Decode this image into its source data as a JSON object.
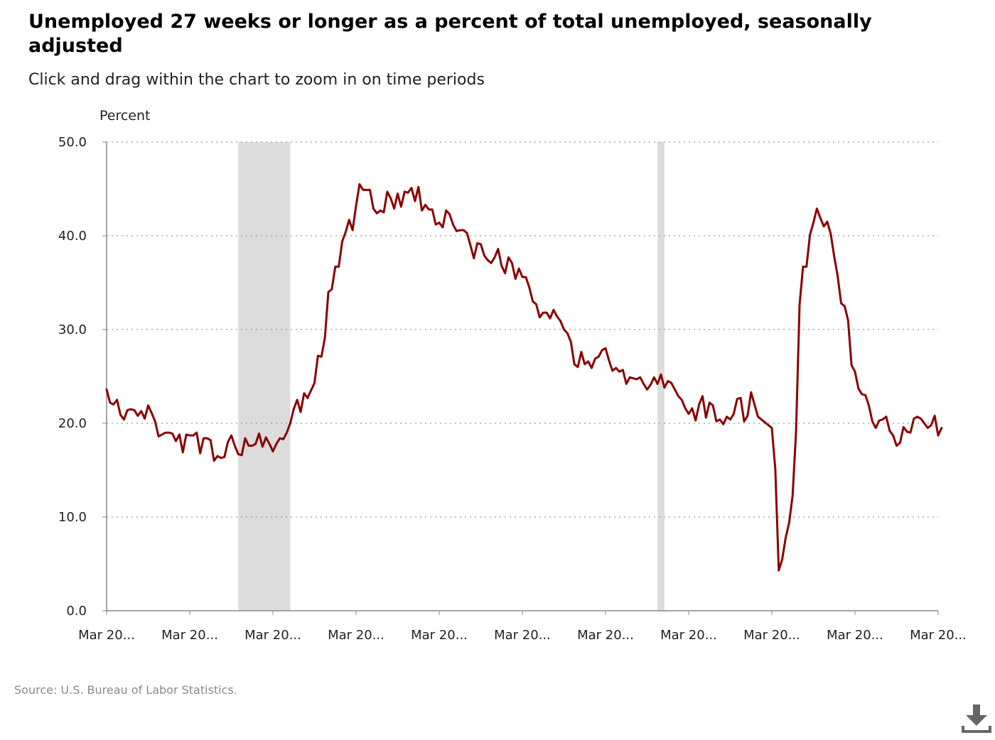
{
  "chart_data": {
    "type": "line",
    "title": "Unemployed 27 weeks or longer as a percent of total unemployed, seasonally adjusted",
    "subtitle": "Click and drag within the chart to zoom in on time periods",
    "ylabel": "Percent",
    "xlabel": "",
    "ylim": [
      0,
      50
    ],
    "y_ticks": [
      "0.0",
      "10.0",
      "20.0",
      "30.0",
      "40.0",
      "50.0"
    ],
    "x_ticks": [
      "Mar 20...",
      "Mar 20...",
      "Mar 20...",
      "Mar 20...",
      "Mar 20...",
      "Mar 20...",
      "Mar 20...",
      "Mar 20...",
      "Mar 20...",
      "Mar 20...",
      "Mar 20..."
    ],
    "grid": true,
    "x_range": [
      0,
      240
    ],
    "shaded_regions": [
      {
        "start": 38,
        "end": 53
      },
      {
        "start": 159,
        "end": 161
      }
    ],
    "series": [
      {
        "color": "#8b0000",
        "points": [
          [
            0,
            23.6
          ],
          [
            1,
            22.2
          ],
          [
            2,
            22.0
          ],
          [
            3,
            22.5
          ],
          [
            4,
            20.9
          ],
          [
            5,
            20.4
          ],
          [
            6,
            21.4
          ],
          [
            7,
            21.5
          ],
          [
            8,
            21.4
          ],
          [
            9,
            20.8
          ],
          [
            10,
            21.3
          ],
          [
            11,
            20.5
          ],
          [
            12,
            21.9
          ],
          [
            13,
            21.1
          ],
          [
            14,
            20.2
          ],
          [
            15,
            18.6
          ],
          [
            16,
            18.8
          ],
          [
            17,
            19.0
          ],
          [
            18,
            19.0
          ],
          [
            19,
            18.9
          ],
          [
            20,
            18.1
          ],
          [
            21,
            18.8
          ],
          [
            22,
            16.9
          ],
          [
            23,
            18.8
          ],
          [
            24,
            18.7
          ],
          [
            25,
            18.7
          ],
          [
            26,
            19.0
          ],
          [
            27,
            16.8
          ],
          [
            28,
            18.4
          ],
          [
            29,
            18.4
          ],
          [
            30,
            18.2
          ],
          [
            31,
            16.0
          ],
          [
            32,
            16.5
          ],
          [
            33,
            16.3
          ],
          [
            34,
            16.4
          ],
          [
            35,
            18.0
          ],
          [
            36,
            18.7
          ],
          [
            37,
            17.6
          ],
          [
            38,
            16.7
          ],
          [
            39,
            16.6
          ],
          [
            40,
            18.4
          ],
          [
            41,
            17.6
          ],
          [
            42,
            17.6
          ],
          [
            43,
            17.8
          ],
          [
            44,
            18.9
          ],
          [
            45,
            17.5
          ],
          [
            46,
            18.5
          ],
          [
            47,
            17.8
          ],
          [
            48,
            17.0
          ],
          [
            49,
            17.8
          ],
          [
            50,
            18.4
          ],
          [
            51,
            18.3
          ],
          [
            52,
            19.0
          ],
          [
            53,
            20.0
          ],
          [
            54,
            21.5
          ],
          [
            55,
            22.5
          ],
          [
            56,
            21.2
          ],
          [
            57,
            23.2
          ],
          [
            58,
            22.7
          ],
          [
            59,
            23.5
          ],
          [
            60,
            24.3
          ],
          [
            61,
            27.2
          ],
          [
            62,
            27.1
          ],
          [
            63,
            29.1
          ],
          [
            64,
            34.0
          ],
          [
            65,
            34.3
          ],
          [
            66,
            36.7
          ],
          [
            67,
            36.7
          ],
          [
            68,
            39.4
          ],
          [
            69,
            40.4
          ],
          [
            70,
            41.7
          ],
          [
            71,
            40.6
          ],
          [
            72,
            43.2
          ],
          [
            73,
            45.5
          ],
          [
            74,
            44.9
          ],
          [
            75,
            44.9
          ],
          [
            76,
            44.9
          ],
          [
            77,
            42.9
          ],
          [
            78,
            42.4
          ],
          [
            79,
            42.7
          ],
          [
            80,
            42.5
          ],
          [
            81,
            44.7
          ],
          [
            82,
            44.0
          ],
          [
            83,
            42.9
          ],
          [
            84,
            44.5
          ],
          [
            85,
            43.1
          ],
          [
            86,
            44.7
          ],
          [
            87,
            44.6
          ],
          [
            88,
            45.1
          ],
          [
            89,
            43.7
          ],
          [
            90,
            45.2
          ],
          [
            91,
            42.7
          ],
          [
            92,
            43.3
          ],
          [
            93,
            42.8
          ],
          [
            94,
            42.8
          ],
          [
            95,
            41.2
          ],
          [
            96,
            41.4
          ],
          [
            97,
            40.9
          ],
          [
            98,
            42.7
          ],
          [
            99,
            42.3
          ],
          [
            100,
            41.2
          ],
          [
            101,
            40.5
          ],
          [
            102,
            40.6
          ],
          [
            103,
            40.6
          ],
          [
            104,
            40.3
          ],
          [
            105,
            39.0
          ],
          [
            106,
            37.6
          ],
          [
            107,
            39.2
          ],
          [
            108,
            39.1
          ],
          [
            109,
            37.9
          ],
          [
            110,
            37.4
          ],
          [
            111,
            37.1
          ],
          [
            112,
            37.7
          ],
          [
            113,
            38.6
          ],
          [
            114,
            36.8
          ],
          [
            115,
            36.0
          ],
          [
            116,
            37.7
          ],
          [
            117,
            37.1
          ],
          [
            118,
            35.4
          ],
          [
            119,
            36.5
          ],
          [
            120,
            35.6
          ],
          [
            121,
            35.6
          ],
          [
            122,
            34.5
          ],
          [
            123,
            33.0
          ],
          [
            124,
            32.7
          ],
          [
            125,
            31.3
          ],
          [
            126,
            31.8
          ],
          [
            127,
            31.8
          ],
          [
            128,
            31.2
          ],
          [
            129,
            32.1
          ],
          [
            130,
            31.4
          ],
          [
            131,
            30.9
          ],
          [
            132,
            30.0
          ],
          [
            133,
            29.6
          ],
          [
            134,
            28.7
          ],
          [
            135,
            26.3
          ],
          [
            136,
            26.0
          ],
          [
            137,
            27.6
          ],
          [
            138,
            26.3
          ],
          [
            139,
            26.6
          ],
          [
            140,
            25.9
          ],
          [
            141,
            26.9
          ],
          [
            142,
            27.1
          ],
          [
            143,
            27.8
          ],
          [
            144,
            28.0
          ],
          [
            145,
            26.7
          ],
          [
            146,
            25.6
          ],
          [
            147,
            25.9
          ],
          [
            148,
            25.5
          ],
          [
            149,
            25.7
          ],
          [
            150,
            24.2
          ],
          [
            151,
            24.9
          ],
          [
            152,
            24.8
          ],
          [
            153,
            24.7
          ],
          [
            154,
            24.9
          ],
          [
            155,
            24.2
          ],
          [
            156,
            23.6
          ],
          [
            157,
            24.1
          ],
          [
            158,
            24.9
          ],
          [
            159,
            24.2
          ],
          [
            160,
            25.2
          ],
          [
            161,
            23.8
          ],
          [
            162,
            24.5
          ],
          [
            163,
            24.3
          ],
          [
            164,
            23.6
          ],
          [
            165,
            22.9
          ],
          [
            166,
            22.5
          ],
          [
            167,
            21.6
          ],
          [
            168,
            21.0
          ],
          [
            169,
            21.6
          ],
          [
            170,
            20.3
          ],
          [
            171,
            22.0
          ],
          [
            172,
            22.9
          ],
          [
            173,
            20.6
          ],
          [
            174,
            22.2
          ],
          [
            175,
            21.9
          ],
          [
            176,
            20.2
          ],
          [
            177,
            20.4
          ],
          [
            178,
            19.9
          ],
          [
            179,
            20.7
          ],
          [
            180,
            20.4
          ],
          [
            181,
            21.0
          ],
          [
            182,
            22.6
          ],
          [
            183,
            22.7
          ],
          [
            184,
            20.2
          ],
          [
            185,
            20.8
          ],
          [
            186,
            23.3
          ],
          [
            187,
            22.0
          ],
          [
            188,
            20.7
          ],
          [
            189,
            20.4
          ],
          [
            190,
            20.1
          ],
          [
            191,
            19.8
          ],
          [
            192,
            19.5
          ],
          [
            193,
            15.1
          ],
          [
            194,
            4.3
          ],
          [
            195,
            5.5
          ],
          [
            196,
            7.8
          ],
          [
            197,
            9.4
          ],
          [
            198,
            12.3
          ],
          [
            199,
            19.2
          ],
          [
            200,
            32.6
          ],
          [
            201,
            36.7
          ],
          [
            202,
            36.7
          ],
          [
            203,
            40.1
          ],
          [
            204,
            41.4
          ],
          [
            205,
            42.9
          ],
          [
            206,
            41.9
          ],
          [
            207,
            41.0
          ],
          [
            208,
            41.5
          ],
          [
            209,
            40.2
          ],
          [
            210,
            37.8
          ],
          [
            211,
            35.7
          ],
          [
            212,
            32.8
          ],
          [
            213,
            32.5
          ],
          [
            214,
            31.0
          ],
          [
            215,
            26.2
          ],
          [
            216,
            25.5
          ],
          [
            217,
            23.7
          ],
          [
            218,
            23.1
          ],
          [
            219,
            23.0
          ],
          [
            220,
            21.9
          ],
          [
            221,
            20.2
          ],
          [
            222,
            19.5
          ],
          [
            223,
            20.3
          ],
          [
            224,
            20.4
          ],
          [
            225,
            20.7
          ],
          [
            226,
            19.2
          ],
          [
            227,
            18.7
          ],
          [
            228,
            17.6
          ],
          [
            229,
            17.9
          ],
          [
            230,
            19.6
          ],
          [
            231,
            19.1
          ],
          [
            232,
            19.0
          ],
          [
            233,
            20.5
          ],
          [
            234,
            20.7
          ],
          [
            235,
            20.5
          ],
          [
            236,
            20.0
          ],
          [
            237,
            19.5
          ],
          [
            238,
            19.8
          ],
          [
            239,
            20.8
          ],
          [
            240,
            18.7
          ],
          [
            241,
            19.5
          ]
        ]
      }
    ]
  },
  "source": "Source: U.S. Bureau of Labor Statistics.",
  "download_icon": "download-icon"
}
